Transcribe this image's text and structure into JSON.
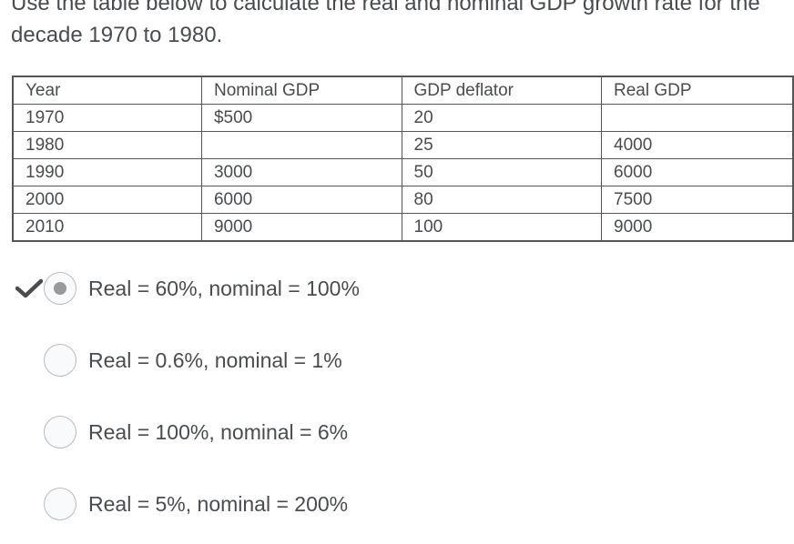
{
  "question": {
    "text": "Use the table below to calculate the real and nominal GDP growth rate for the decade 1970 to 1980."
  },
  "table": {
    "headers": [
      "Year",
      "Nominal GDP",
      "GDP deflator",
      "Real GDP"
    ],
    "rows": [
      [
        "1970",
        "$500",
        "20",
        ""
      ],
      [
        "1980",
        "",
        "25",
        "4000"
      ],
      [
        "1990",
        "3000",
        "50",
        "6000"
      ],
      [
        "2000",
        "6000",
        "80",
        "7500"
      ],
      [
        "2010",
        "9000",
        "100",
        "9000"
      ]
    ]
  },
  "options": [
    {
      "label": "Real = 60%, nominal = 100%",
      "selected": true,
      "correct_mark": "checkmark-icon"
    },
    {
      "label": "Real = 0.6%, nominal = 1%",
      "selected": false
    },
    {
      "label": "Real = 100%, nominal = 6%",
      "selected": false
    },
    {
      "label": "Real = 5%, nominal = 200%",
      "selected": false
    }
  ],
  "colors": {
    "text": "#494c4e",
    "table_border": "#555555",
    "radio_border": "#b9bcbf",
    "radio_dot": "#999a9c",
    "checkmark": "#494c4e"
  }
}
